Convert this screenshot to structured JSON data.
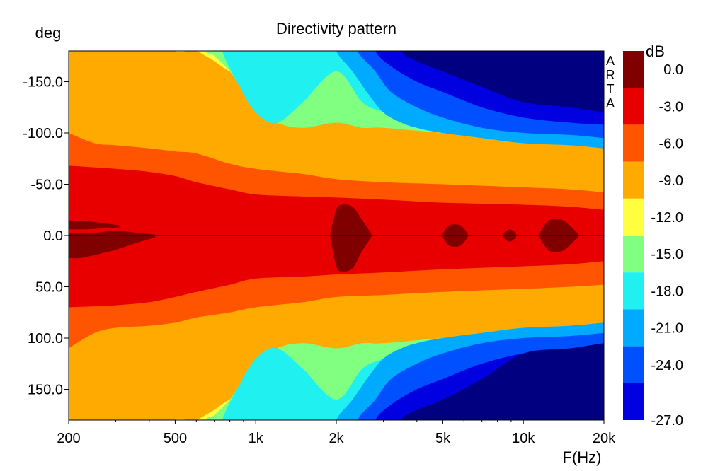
{
  "chart_data": {
    "type": "heatmap",
    "title": "Directivity pattern",
    "xlabel": "F(Hz)",
    "ylabel": "deg",
    "x_scale": "log",
    "xlim": [
      200,
      20000
    ],
    "ylim": [
      -180,
      180
    ],
    "x_ticks": [
      {
        "value": 200,
        "label": "200"
      },
      {
        "value": 500,
        "label": "500"
      },
      {
        "value": 1000,
        "label": "1k"
      },
      {
        "value": 2000,
        "label": "2k"
      },
      {
        "value": 5000,
        "label": "5k"
      },
      {
        "value": 10000,
        "label": "10k"
      },
      {
        "value": 20000,
        "label": "20k"
      }
    ],
    "y_ticks": [
      {
        "value": -150,
        "label": "-150.0"
      },
      {
        "value": -100,
        "label": "-100.0"
      },
      {
        "value": -50,
        "label": "-50.0"
      },
      {
        "value": 0,
        "label": "0.0"
      },
      {
        "value": 50,
        "label": "50.0"
      },
      {
        "value": 100,
        "label": "100.0"
      },
      {
        "value": 150,
        "label": "150.0"
      }
    ],
    "watermark": "ARTA",
    "colorbar": {
      "unit": "dB",
      "levels": [
        {
          "label": "0.0",
          "upper": 3,
          "lower": 0,
          "color": "#800000"
        },
        {
          "label": "-3.0",
          "upper": 0,
          "lower": -3,
          "color": "#e80000"
        },
        {
          "label": "-6.0",
          "upper": -3,
          "lower": -6,
          "color": "#ff5500"
        },
        {
          "label": "-9.0",
          "upper": -6,
          "lower": -9,
          "color": "#ffaa00"
        },
        {
          "label": "-12.0",
          "upper": -9,
          "lower": -12,
          "color": "#ffff40"
        },
        {
          "label": "-15.0",
          "upper": -12,
          "lower": -15,
          "color": "#80ff80"
        },
        {
          "label": "-18.0",
          "upper": -15,
          "lower": -18,
          "color": "#20f0f0"
        },
        {
          "label": "-21.0",
          "upper": -18,
          "lower": -21,
          "color": "#00aaff"
        },
        {
          "label": "-24.0",
          "upper": -21,
          "lower": -24,
          "color": "#0050ff"
        },
        {
          "label": "-27.0",
          "upper": -24,
          "lower": -27,
          "color": "#0000e0"
        },
        {
          "label": "",
          "upper": -27,
          "lower": -40,
          "color": "#000080"
        }
      ]
    },
    "contours": [
      {
        "level": -6,
        "color": "#ffaa00",
        "freq": [
          200,
          20000
        ],
        "lower_deg": -180,
        "upper_deg": 180
      },
      {
        "level": -9,
        "color": "#ffff40",
        "freq": [
          500,
          560,
          600,
          650,
          700,
          800,
          1000,
          1500,
          2000,
          3000,
          5000,
          10000,
          15000,
          20000
        ],
        "upper_deg": [
          -180,
          -180,
          -180,
          -175,
          -170,
          -160,
          -150,
          -150,
          -150,
          -145,
          -140,
          -135,
          -130,
          -130
        ],
        "lower_deg": [
          180,
          180,
          180,
          175,
          170,
          160,
          150,
          150,
          150,
          145,
          140,
          135,
          130,
          130
        ]
      },
      {
        "level": -12,
        "color": "#80ff80",
        "freq": [
          650,
          700,
          800,
          900,
          1000,
          1200,
          1500,
          2000,
          2500,
          3000,
          5000,
          10000,
          15000,
          20000
        ],
        "upper_deg": [
          -180,
          -175,
          -160,
          -140,
          -125,
          -110,
          -105,
          -110,
          -105,
          -105,
          -100,
          -95,
          -90,
          -90
        ],
        "lower_deg": [
          180,
          175,
          160,
          140,
          125,
          110,
          105,
          110,
          105,
          105,
          100,
          95,
          90,
          90
        ]
      },
      {
        "level": -15,
        "color": "#20f0f0",
        "freq": [
          750,
          850,
          1000,
          1200,
          1500,
          2000,
          2500,
          3000,
          4000,
          5000,
          7000,
          10000,
          15000,
          20000
        ],
        "upper_deg": [
          -180,
          -150,
          -120,
          -110,
          -130,
          -160,
          -130,
          -120,
          -105,
          -100,
          -95,
          -90,
          -90,
          -85
        ],
        "lower_deg": [
          180,
          150,
          120,
          110,
          130,
          160,
          130,
          120,
          105,
          100,
          95,
          90,
          90,
          85
        ]
      },
      {
        "level": -18,
        "color": "#00aaff",
        "freq": [
          2000,
          2300,
          2600,
          3000,
          3500,
          4000,
          5000,
          7000,
          10000,
          15000,
          20000
        ],
        "upper_deg": [
          -180,
          -160,
          -140,
          -120,
          -110,
          -105,
          -100,
          -95,
          -90,
          -88,
          -85
        ],
        "lower_deg": [
          180,
          160,
          140,
          120,
          110,
          105,
          100,
          95,
          90,
          88,
          85
        ]
      },
      {
        "level": -21,
        "color": "#0050ff",
        "freq": [
          2400,
          2800,
          3200,
          4000,
          5000,
          7000,
          10000,
          15000,
          20000
        ],
        "upper_deg": [
          -180,
          -160,
          -140,
          -125,
          -115,
          -105,
          -100,
          -98,
          -95
        ],
        "lower_deg": [
          180,
          160,
          140,
          125,
          115,
          105,
          100,
          98,
          95
        ]
      },
      {
        "level": -24,
        "color": "#0000e0",
        "freq": [
          2800,
          3200,
          4000,
          5000,
          7000,
          10000,
          15000,
          20000
        ],
        "upper_deg": [
          -180,
          -165,
          -150,
          -140,
          -125,
          -115,
          -110,
          -108
        ],
        "lower_deg": [
          180,
          165,
          150,
          140,
          125,
          115,
          110,
          108
        ]
      },
      {
        "level": -27,
        "color": "#000080",
        "freq": [
          3500,
          4000,
          5000,
          7000,
          10000,
          15000,
          20000
        ],
        "upper_deg": [
          -180,
          -170,
          -160,
          -145,
          -130,
          -125,
          -120
        ],
        "lower_deg": [
          180,
          170,
          160,
          140,
          115,
          110,
          105
        ]
      },
      {
        "level": -3,
        "color": "#ff5500",
        "freq": [
          200,
          250,
          300,
          400,
          500,
          600,
          800,
          1000,
          1500,
          2000,
          3000,
          5000,
          10000,
          15000,
          20000
        ],
        "upper_deg": [
          -100,
          -90,
          -88,
          -85,
          -82,
          -80,
          -70,
          -65,
          -60,
          -55,
          -52,
          -50,
          -47,
          -45,
          -42
        ],
        "lower_deg": [
          110,
          95,
          90,
          88,
          85,
          80,
          75,
          70,
          65,
          60,
          58,
          55,
          52,
          50,
          48
        ]
      },
      {
        "level": 0,
        "color": "#e80000",
        "freq": [
          200,
          300,
          400,
          500,
          600,
          800,
          1000,
          1500,
          2000,
          3000,
          5000,
          10000,
          15000,
          20000
        ],
        "upper_deg": [
          -68,
          -65,
          -62,
          -58,
          -52,
          -45,
          -40,
          -38,
          -37,
          -35,
          -32,
          -30,
          -28,
          -25
        ],
        "lower_deg": [
          70,
          68,
          65,
          60,
          55,
          48,
          42,
          40,
          38,
          36,
          33,
          30,
          28,
          25
        ]
      }
    ],
    "maxima": [
      {
        "color": "#800000",
        "freq": [
          200,
          220,
          260,
          300,
          350,
          420
        ],
        "upper_deg": [
          -2,
          -2,
          -3,
          -5,
          -3,
          -1
        ],
        "lower_deg": [
          22,
          22,
          18,
          14,
          8,
          2
        ]
      },
      {
        "color": "#800000",
        "freq": [
          200,
          230,
          270,
          310
        ],
        "upper_deg": [
          -14,
          -14,
          -12,
          -10
        ],
        "lower_deg": [
          -6,
          -6,
          -7,
          -8
        ]
      },
      {
        "color": "#800000",
        "freq": [
          1900,
          2000,
          2100,
          2300,
          2500,
          2700
        ],
        "upper_deg": [
          -2,
          -25,
          -30,
          -28,
          -15,
          -2
        ],
        "lower_deg": [
          2,
          30,
          35,
          32,
          15,
          2
        ]
      },
      {
        "color": "#800000",
        "freq": [
          5000,
          5300,
          5800,
          6200
        ],
        "upper_deg": [
          -2,
          -10,
          -10,
          -2
        ],
        "lower_deg": [
          2,
          10,
          10,
          2
        ]
      },
      {
        "color": "#800000",
        "freq": [
          8400,
          8900,
          9400
        ],
        "upper_deg": [
          -2,
          -6,
          -2
        ],
        "lower_deg": [
          2,
          6,
          2
        ]
      },
      {
        "color": "#800000",
        "freq": [
          11500,
          12500,
          14000,
          16000
        ],
        "upper_deg": [
          -2,
          -15,
          -15,
          -2
        ],
        "lower_deg": [
          2,
          15,
          15,
          2
        ]
      }
    ]
  }
}
